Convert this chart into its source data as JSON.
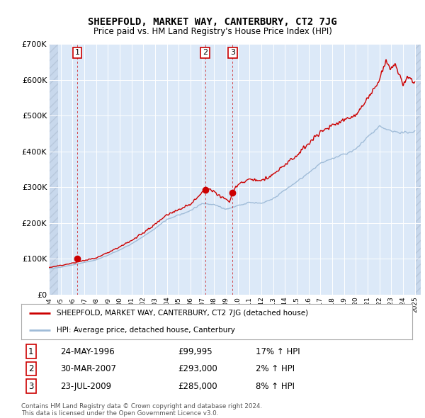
{
  "title": "SHEEPFOLD, MARKET WAY, CANTERBURY, CT2 7JG",
  "subtitle": "Price paid vs. HM Land Registry's House Price Index (HPI)",
  "ylim": [
    0,
    700000
  ],
  "yticks": [
    0,
    100000,
    200000,
    300000,
    400000,
    500000,
    600000,
    700000
  ],
  "ytick_labels": [
    "£0",
    "£100K",
    "£200K",
    "£300K",
    "£400K",
    "£500K",
    "£600K",
    "£700K"
  ],
  "xlim_start": 1994.0,
  "xlim_end": 2025.5,
  "background_color": "#dce9f8",
  "sale_color": "#cc0000",
  "hpi_color": "#a0bcd8",
  "sale_dates": [
    1996.39,
    2007.25,
    2009.56
  ],
  "sale_prices": [
    99995,
    293000,
    285000
  ],
  "sale_labels": [
    "1",
    "2",
    "3"
  ],
  "legend_sale_label": "SHEEPFOLD, MARKET WAY, CANTERBURY, CT2 7JG (detached house)",
  "legend_hpi_label": "HPI: Average price, detached house, Canterbury",
  "table_entries": [
    {
      "num": "1",
      "date": "24-MAY-1996",
      "price": "£99,995",
      "hpi": "17% ↑ HPI"
    },
    {
      "num": "2",
      "date": "30-MAR-2007",
      "price": "£293,000",
      "hpi": "2% ↑ HPI"
    },
    {
      "num": "3",
      "date": "23-JUL-2009",
      "price": "£285,000",
      "hpi": "8% ↑ HPI"
    }
  ],
  "footer": "Contains HM Land Registry data © Crown copyright and database right 2024.\nThis data is licensed under the Open Government Licence v3.0."
}
